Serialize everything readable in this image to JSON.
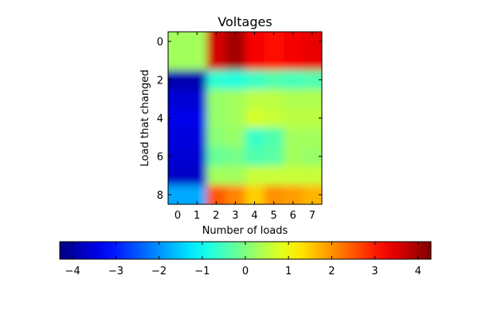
{
  "chart_data": {
    "type": "heatmap",
    "title": "Voltages",
    "xlabel": "Number of loads",
    "ylabel": "Load that changed",
    "x_ticks": [
      0,
      1,
      2,
      3,
      4,
      5,
      6,
      7
    ],
    "y_ticks": [
      0,
      2,
      4,
      6,
      8
    ],
    "x_range": [
      -0.5,
      7.5
    ],
    "y_range": [
      -0.5,
      8.5
    ],
    "colormap": "jet",
    "interpolation": "bilinear",
    "vmin": -4.3,
    "vmax": 4.3,
    "colorbar": {
      "orientation": "horizontal",
      "placement": "bottom",
      "ticks": [
        -4,
        -3,
        -2,
        -1,
        0,
        1,
        2,
        3,
        4
      ]
    },
    "values": [
      [
        0.3,
        0.3,
        3.6,
        4.0,
        3.3,
        3.1,
        3.3,
        3.4
      ],
      [
        0.3,
        0.3,
        3.6,
        4.0,
        3.3,
        3.1,
        3.3,
        3.4
      ],
      [
        -3.9,
        -3.9,
        -0.7,
        -0.8,
        -0.6,
        -0.4,
        -0.5,
        -0.4
      ],
      [
        -3.6,
        -3.6,
        0.2,
        0.3,
        0.5,
        0.5,
        0.4,
        0.4
      ],
      [
        -3.4,
        -3.4,
        0.2,
        0.3,
        0.7,
        0.6,
        0.5,
        0.5
      ],
      [
        -3.5,
        -3.5,
        0.1,
        0.2,
        -0.6,
        -0.4,
        0.3,
        0.3
      ],
      [
        -3.6,
        -3.6,
        -0.2,
        -0.1,
        -0.4,
        -0.3,
        0.3,
        0.2
      ],
      [
        -3.7,
        -3.7,
        0.3,
        0.3,
        0.6,
        0.6,
        0.6,
        0.6
      ],
      [
        -1.8,
        -1.8,
        2.5,
        2.1,
        1.5,
        2.0,
        1.9,
        1.7
      ]
    ]
  }
}
